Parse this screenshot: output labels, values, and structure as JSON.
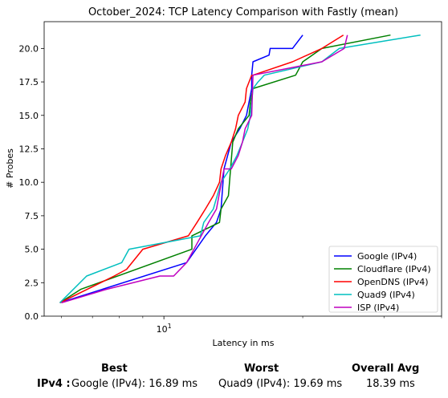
{
  "chart_data": {
    "type": "line",
    "title": "October_2024: TCP Latency Comparison with Fastly (mean)",
    "xlabel": "Latency in ms",
    "ylabel": "# Probes",
    "xscale": "log",
    "xlim": [
      5.5,
      40
    ],
    "ylim": [
      0,
      22
    ],
    "xticks": [
      {
        "value": 10,
        "label": "10",
        "sup": "1"
      }
    ],
    "yticks": [
      "0.0",
      "2.5",
      "5.0",
      "7.5",
      "10.0",
      "12.5",
      "15.0",
      "17.5",
      "20.0"
    ],
    "legend_position": "lower-right",
    "series": [
      {
        "name": "Google (IPv4)",
        "color": "#0000ff",
        "x": [
          5.95,
          11.2,
          12.3,
          13.0,
          13.3,
          13.5,
          14.0,
          14.6,
          15.1,
          15.3,
          15.5,
          15.5,
          15.6,
          16.9,
          17.0,
          19.0,
          20.0
        ],
        "y": [
          1,
          4,
          6,
          7,
          8,
          11,
          13,
          14,
          15,
          16,
          17,
          18,
          19,
          19.5,
          20,
          20,
          21
        ]
      },
      {
        "name": "Cloudflare (IPv4)",
        "color": "#008000",
        "x": [
          5.95,
          6.6,
          11.5,
          11.5,
          13.2,
          13.3,
          13.8,
          14.1,
          14.5,
          15.3,
          15.4,
          15.6,
          19.3,
          20.0,
          22.0,
          31.0
        ],
        "y": [
          1,
          2,
          5,
          6,
          7,
          8,
          9,
          13,
          14,
          15,
          16,
          17,
          18,
          19,
          20,
          21
        ]
      },
      {
        "name": "OpenDNS (IPv4)",
        "color": "#ff0000",
        "x": [
          5.95,
          7.8,
          8.3,
          9.0,
          11.3,
          11.8,
          12.3,
          12.8,
          13.2,
          13.3,
          13.6,
          14.0,
          14.3,
          14.5,
          15.0,
          15.1,
          15.3,
          15.5,
          15.6,
          19.0,
          22.0,
          24.5
        ],
        "y": [
          1,
          3,
          3.5,
          5,
          6,
          7,
          8,
          9,
          10,
          11,
          12,
          13,
          14,
          15,
          16,
          17,
          17.5,
          18,
          18,
          19,
          20,
          21
        ]
      },
      {
        "name": "Quad9 (IPv4)",
        "color": "#00bfbf",
        "x": [
          5.95,
          6.8,
          8.1,
          8.4,
          12.0,
          12.2,
          12.8,
          13.3,
          13.9,
          14.4,
          14.8,
          15.2,
          15.4,
          15.6,
          16.0,
          16.5,
          22.0,
          24.0,
          36.0
        ],
        "y": [
          1,
          3,
          4,
          5,
          6,
          7,
          8,
          10,
          11,
          12,
          13,
          14,
          15,
          17,
          17.5,
          18,
          19,
          20,
          21
        ]
      },
      {
        "name": "ISP (IPv4)",
        "color": "#bf00bf",
        "x": [
          6.0,
          7.5,
          9.8,
          10.5,
          11.2,
          12.5,
          13.0,
          13.5,
          14.0,
          14.5,
          14.8,
          15.0,
          15.5,
          15.6,
          22.0,
          24.6,
          25.0
        ],
        "y": [
          1,
          2,
          3,
          3,
          4,
          7,
          8,
          11,
          11,
          12,
          13,
          14,
          15,
          18,
          19,
          20,
          21
        ]
      }
    ]
  },
  "summary": {
    "headers": {
      "best": "Best",
      "worst": "Worst",
      "overall": "Overall Avg"
    },
    "row_label": "IPv4 :",
    "best_value": "Google (IPv4): 16.89 ms",
    "worst_value": "Quad9 (IPv4): 19.69 ms",
    "overall_value": "18.39 ms"
  }
}
